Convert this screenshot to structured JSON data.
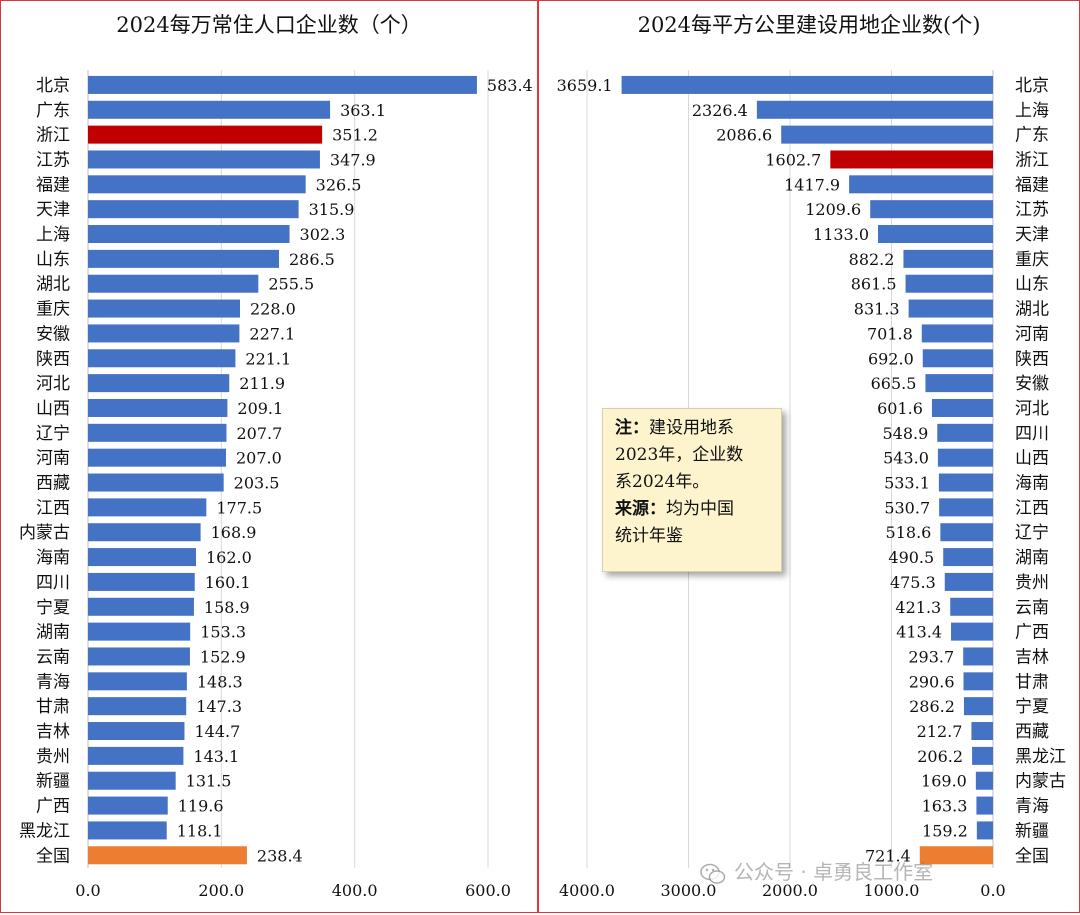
{
  "colors": {
    "bar": "#4472c4",
    "highlight": "#c00000",
    "total": "#ed7d31",
    "grid": "#d9d9d9"
  },
  "chart_data": [
    {
      "type": "bar",
      "orientation": "horizontal",
      "title": "2024每万常住人口企业数（个）",
      "categories": [
        "北京",
        "广东",
        "浙江",
        "江苏",
        "福建",
        "天津",
        "上海",
        "山东",
        "湖北",
        "重庆",
        "安徽",
        "陕西",
        "河北",
        "山西",
        "辽宁",
        "河南",
        "西藏",
        "江西",
        "内蒙古",
        "海南",
        "四川",
        "宁夏",
        "湖南",
        "云南",
        "青海",
        "甘肃",
        "吉林",
        "贵州",
        "新疆",
        "广西",
        "黑龙江",
        "全国"
      ],
      "values": [
        583.4,
        363.1,
        351.2,
        347.9,
        326.5,
        315.9,
        302.3,
        286.5,
        255.5,
        228.0,
        227.1,
        221.1,
        211.9,
        209.1,
        207.7,
        207.0,
        203.5,
        177.5,
        168.9,
        162.0,
        160.1,
        158.9,
        153.3,
        152.9,
        148.3,
        147.3,
        144.7,
        143.1,
        131.5,
        119.6,
        118.1,
        238.4
      ],
      "labels": [
        "583.4",
        "363.1",
        "351.2",
        "347.9",
        "326.5",
        "315.9",
        "302.3",
        "286.5",
        "255.5",
        "228.0",
        "227.1",
        "221.1",
        "211.9",
        "209.1",
        "207.7",
        "207.0",
        "203.5",
        "177.5",
        "168.9",
        "162.0",
        "160.1",
        "158.9",
        "153.3",
        "152.9",
        "148.3",
        "147.3",
        "144.7",
        "143.1",
        "131.5",
        "119.6",
        "118.1",
        "238.4"
      ],
      "highlight": [
        "浙江"
      ],
      "total": [
        "全国"
      ],
      "xlim": [
        0,
        600
      ],
      "xticks": [
        0,
        200,
        400,
        600
      ],
      "xtick_labels": [
        "0.0",
        "200.0",
        "400.0",
        "600.0"
      ],
      "grid": true
    },
    {
      "type": "bar",
      "orientation": "horizontal",
      "reversed": true,
      "title": "2024每平方公里建设用地企业数(个)",
      "categories": [
        "北京",
        "上海",
        "广东",
        "浙江",
        "福建",
        "江苏",
        "天津",
        "重庆",
        "山东",
        "湖北",
        "河南",
        "陕西",
        "安徽",
        "河北",
        "四川",
        "山西",
        "海南",
        "江西",
        "辽宁",
        "湖南",
        "贵州",
        "云南",
        "广西",
        "吉林",
        "甘肃",
        "宁夏",
        "西藏",
        "黑龙江",
        "内蒙古",
        "青海",
        "新疆",
        "全国"
      ],
      "values": [
        3659.1,
        2326.4,
        2086.6,
        1602.7,
        1417.9,
        1209.6,
        1133.0,
        882.2,
        861.5,
        831.3,
        701.8,
        692.0,
        665.5,
        601.6,
        548.9,
        543.0,
        533.1,
        530.7,
        518.6,
        490.5,
        475.3,
        421.3,
        413.4,
        293.7,
        290.6,
        286.2,
        212.7,
        206.2,
        169.0,
        163.3,
        159.2,
        721.4
      ],
      "labels": [
        "3659.1",
        "2326.4",
        "2086.6",
        "1602.7",
        "1417.9",
        "1209.6",
        "1133.0",
        "882.2",
        "861.5",
        "831.3",
        "701.8",
        "692.0",
        "665.5",
        "601.6",
        "548.9",
        "543.0",
        "533.1",
        "530.7",
        "518.6",
        "490.5",
        "475.3",
        "421.3",
        "413.4",
        "293.7",
        "290.6",
        "286.2",
        "212.7",
        "206.2",
        "169.0",
        "163.3",
        "159.2",
        "721.4"
      ],
      "highlight": [
        "浙江"
      ],
      "total": [
        "全国"
      ],
      "xlim": [
        0,
        4000
      ],
      "xticks": [
        4000,
        3000,
        2000,
        1000,
        0
      ],
      "xtick_labels": [
        "4000.0",
        "3000.0",
        "2000.0",
        "1000.0",
        "0.0"
      ],
      "grid": true
    }
  ],
  "note": {
    "line1_bold": "注：",
    "line1": "建设用地系",
    "line2": "2023年，企业数",
    "line3": "系2024年。",
    "line4_bold": "来源：",
    "line4": "均为中国",
    "line5": "统计年鉴"
  },
  "watermark": {
    "icon": "wechat-icon",
    "text": "公众号 · 卓勇良工作室"
  }
}
